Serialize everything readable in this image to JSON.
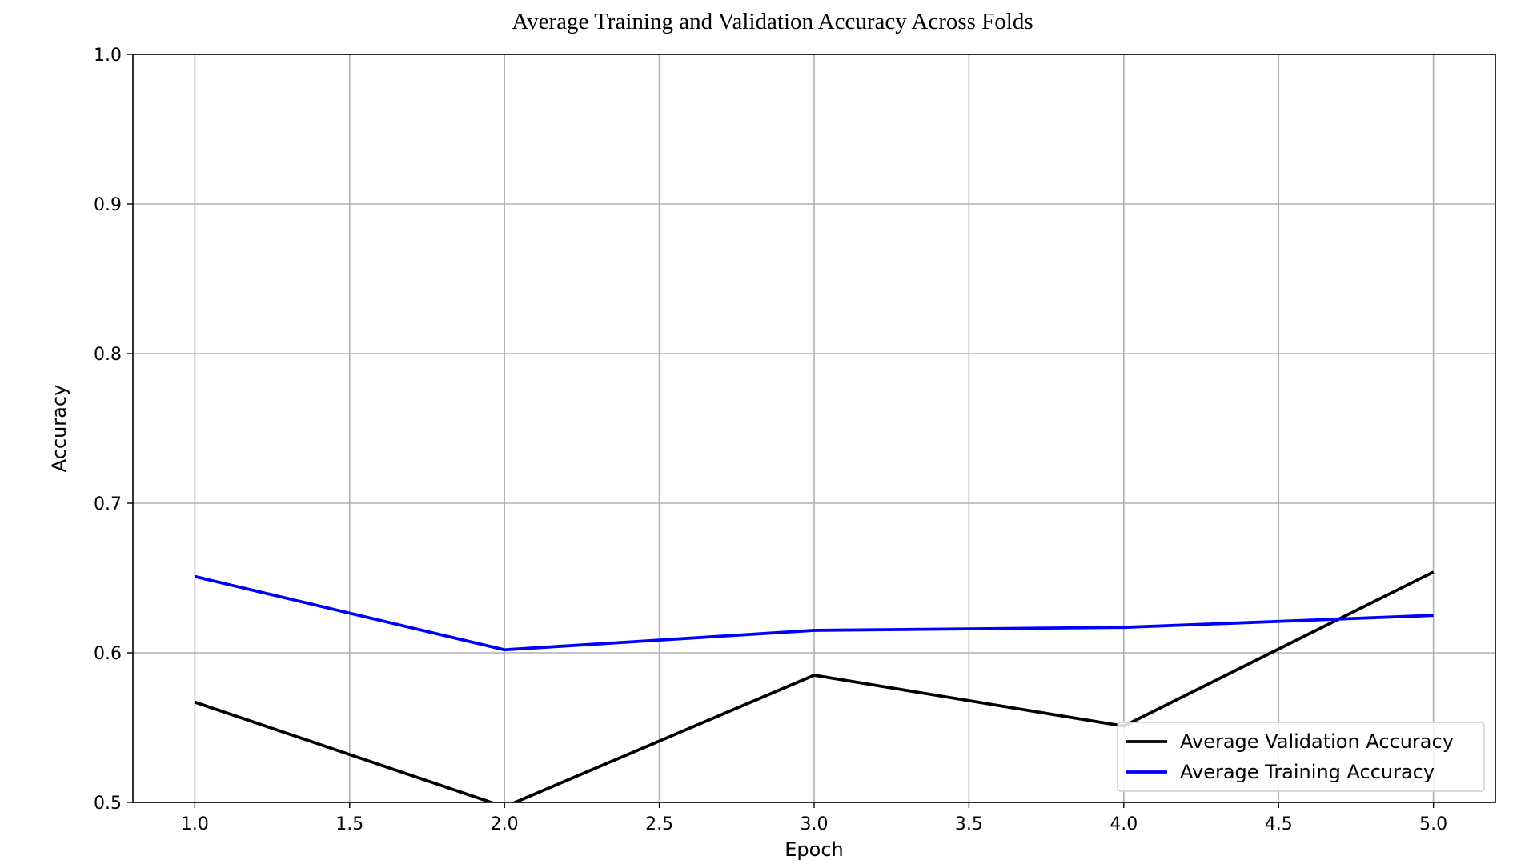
{
  "chart_data": {
    "type": "line",
    "title": "Average Training and Validation Accuracy Across Folds",
    "xlabel": "Epoch",
    "ylabel": "Accuracy",
    "xlim": [
      0.8,
      5.2
    ],
    "ylim": [
      0.5,
      1.0
    ],
    "x_ticks": [
      1.0,
      1.5,
      2.0,
      2.5,
      3.0,
      3.5,
      4.0,
      4.5,
      5.0
    ],
    "x_tick_labels": [
      "1.0",
      "1.5",
      "2.0",
      "2.5",
      "3.0",
      "3.5",
      "4.0",
      "4.5",
      "5.0"
    ],
    "y_ticks": [
      0.5,
      0.6,
      0.7,
      0.8,
      0.9,
      1.0
    ],
    "y_tick_labels": [
      "0.5",
      "0.6",
      "0.7",
      "0.8",
      "0.9",
      "1.0"
    ],
    "grid": true,
    "legend_position": "lower-right",
    "x": [
      1,
      2,
      3,
      4,
      5
    ],
    "series": [
      {
        "name": "Average Validation Accuracy",
        "color": "#000000",
        "values": [
          0.567,
          0.497,
          0.585,
          0.551,
          0.654
        ]
      },
      {
        "name": "Average Training Accuracy",
        "color": "#0000ff",
        "values": [
          0.651,
          0.602,
          0.615,
          0.617,
          0.625
        ]
      }
    ]
  }
}
